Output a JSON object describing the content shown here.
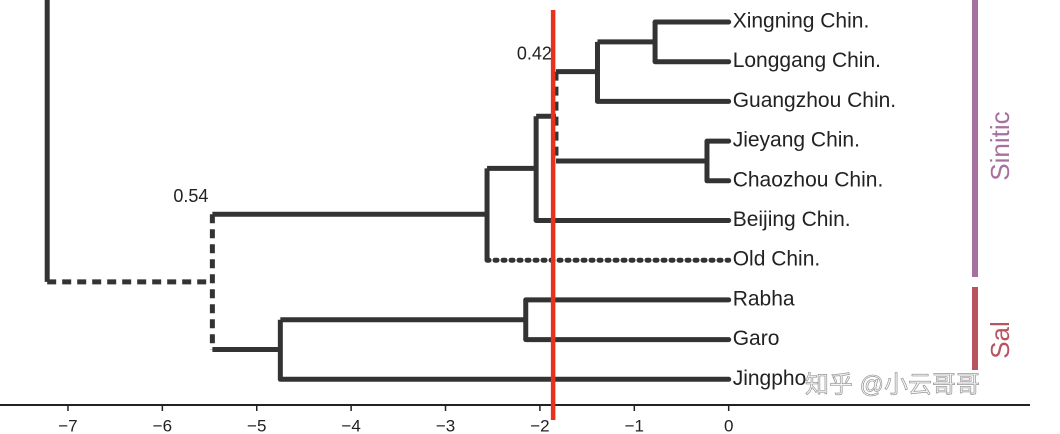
{
  "chart_data": {
    "type": "dendrogram",
    "xlim": [
      -7.72,
      3.51
    ],
    "xticks": [
      {
        "value": -7,
        "label": "−7"
      },
      {
        "value": -6,
        "label": "−6"
      },
      {
        "value": -5,
        "label": "−5"
      },
      {
        "value": -4,
        "label": "−4"
      },
      {
        "value": -3,
        "label": "−3"
      },
      {
        "value": -2,
        "label": "−2"
      },
      {
        "value": -1,
        "label": "−1"
      },
      0
    ],
    "color": "#333333",
    "reference_line": {
      "x": -1.86,
      "color": "#e8331c"
    },
    "groups": [
      {
        "label": "Sinitic",
        "color": "#a7719f"
      },
      {
        "label": "Sal",
        "color": "#b9535f"
      }
    ],
    "watermark": "知乎 @小云哥哥",
    "tree": {
      "x": -7.22,
      "children": [
        {
          "x": -5.47,
          "support": 0.54,
          "edge_style": "dashed",
          "split_style": "dashed",
          "children": [
            {
              "x": -2.56,
              "children": [
                {
                  "x": -2.04,
                  "children": [
                    {
                      "x": -1.83,
                      "support": 0.42,
                      "split_style": "dashed",
                      "children": [
                        {
                          "x": -1.39,
                          "children": [
                            {
                              "x": -0.78,
                              "children": [
                                {
                                  "label": "Xingning Chin.",
                                  "x": 0
                                },
                                {
                                  "label": "Longgang Chin.",
                                  "x": 0
                                }
                              ]
                            },
                            {
                              "label": "Guangzhou Chin.",
                              "x": 0
                            }
                          ]
                        },
                        {
                          "x": -0.23,
                          "children": [
                            {
                              "label": "Jieyang Chin.",
                              "x": 0
                            },
                            {
                              "label": "Chaozhou Chin.",
                              "x": 0
                            }
                          ]
                        }
                      ]
                    },
                    {
                      "label": "Beijing Chin.",
                      "x": 0
                    }
                  ]
                },
                {
                  "label": "Old Chin.",
                  "x": 0,
                  "edge_style": "dotted"
                }
              ]
            },
            {
              "x": -4.75,
              "children": [
                {
                  "x": -2.15,
                  "children": [
                    {
                      "label": "Rabha",
                      "x": 0
                    },
                    {
                      "label": "Garo",
                      "x": 0
                    }
                  ]
                },
                {
                  "label": "Jingpho",
                  "x": 0
                }
              ]
            }
          ]
        }
      ]
    }
  }
}
